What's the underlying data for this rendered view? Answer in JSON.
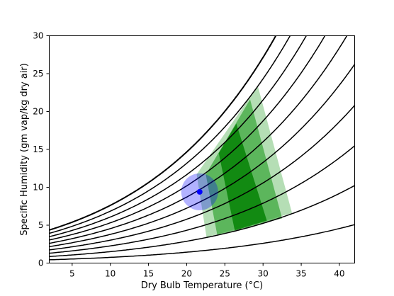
{
  "chart_data": {
    "type": "line",
    "title": "",
    "xlabel": "Dry Bulb Temperature (°C)",
    "ylabel": "Specific Humidity (gm vap/kg dry air)",
    "xlim": [
      2,
      42
    ],
    "ylim": [
      0,
      30
    ],
    "xticks": [
      5,
      10,
      15,
      20,
      25,
      30,
      35,
      40
    ],
    "yticks": [
      0,
      5,
      10,
      15,
      20,
      25,
      30
    ],
    "grid": false,
    "legend": "none",
    "rh_curves_percent": [
      10,
      20,
      30,
      40,
      50,
      60,
      70,
      80,
      90,
      100
    ],
    "comfort_zones": [
      {
        "name": "outer",
        "color": "#2ca02c",
        "opacity": 0.35,
        "polygon": [
          [
            21.3,
            11.7
          ],
          [
            29.3,
            23.4
          ],
          [
            33.8,
            6.6
          ],
          [
            22.6,
            3.4
          ]
        ]
      },
      {
        "name": "middle",
        "color": "#2ca02c",
        "opacity": 0.65,
        "polygon": [
          [
            22.5,
            11.7
          ],
          [
            28.3,
            21.6
          ],
          [
            32.5,
            5.9
          ],
          [
            24.0,
            3.7
          ]
        ]
      },
      {
        "name": "inner",
        "color": "#008000",
        "opacity": 0.8,
        "polygon": [
          [
            24.2,
            14.5
          ],
          [
            26.5,
            18.4
          ],
          [
            30.5,
            5.6
          ],
          [
            26.3,
            4.3
          ]
        ]
      }
    ],
    "marker": {
      "x": 21.7,
      "y": 9.4,
      "color": "#0000ff",
      "halo_color": "#0000ff",
      "halo_opacity": 0.3
    }
  }
}
